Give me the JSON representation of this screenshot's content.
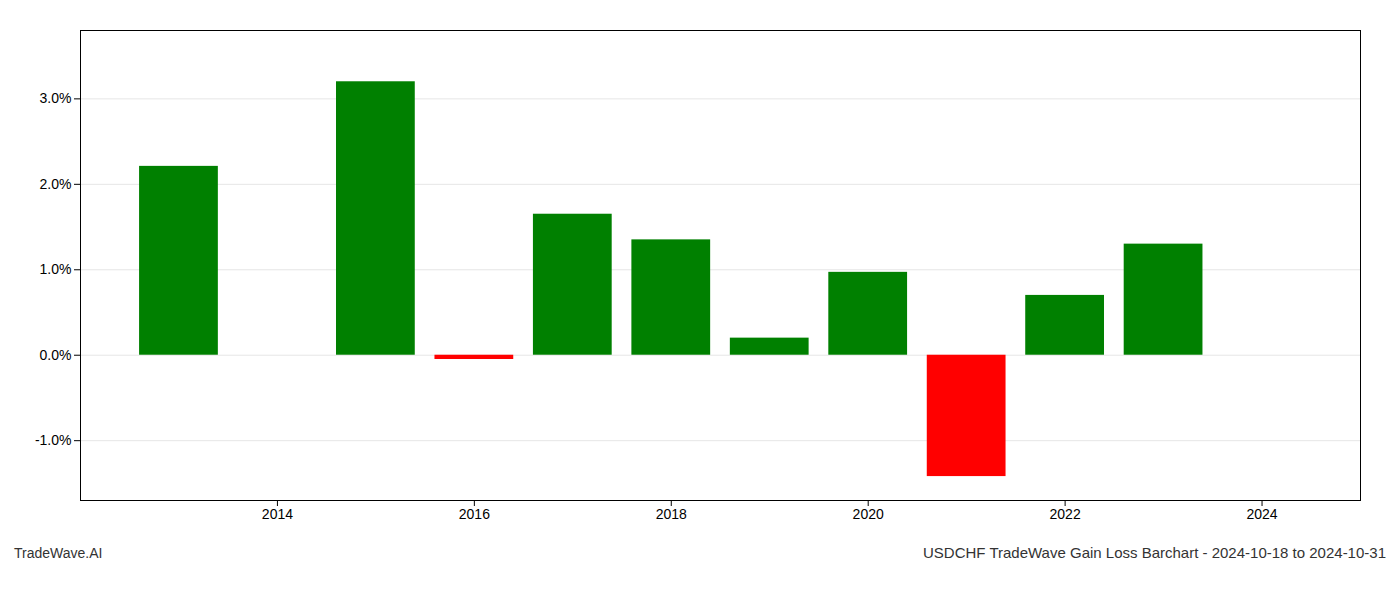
{
  "chart_data": {
    "type": "bar",
    "title": "USDCHF TradeWave Gain Loss Barchart - 2024-10-18 to 2024-10-31",
    "annotations": [
      "TradeWave.AI"
    ],
    "x": [
      2013,
      2015,
      2016,
      2017,
      2018,
      2019,
      2020,
      2021,
      2022,
      2023
    ],
    "values": [
      0.0221,
      0.032,
      -0.0005,
      0.0165,
      0.0135,
      0.002,
      0.0097,
      -0.0142,
      0.007,
      0.013
    ],
    "colors": [
      "#008000",
      "#008000",
      "#ff0000",
      "#008000",
      "#008000",
      "#008000",
      "#008000",
      "#ff0000",
      "#008000",
      "#008000"
    ],
    "xlim": [
      2012.0,
      2025.0
    ],
    "xticks": [
      2014,
      2016,
      2018,
      2020,
      2022,
      2024
    ],
    "ylim": [
      -0.017,
      0.038
    ],
    "yticks": [
      {
        "value": -0.01,
        "label": "-1.0%"
      },
      {
        "value": 0.0,
        "label": "0.0%"
      },
      {
        "value": 0.01,
        "label": "1.0%"
      },
      {
        "value": 0.02,
        "label": "2.0%"
      },
      {
        "value": 0.03,
        "label": "3.0%"
      }
    ],
    "grid": true
  }
}
